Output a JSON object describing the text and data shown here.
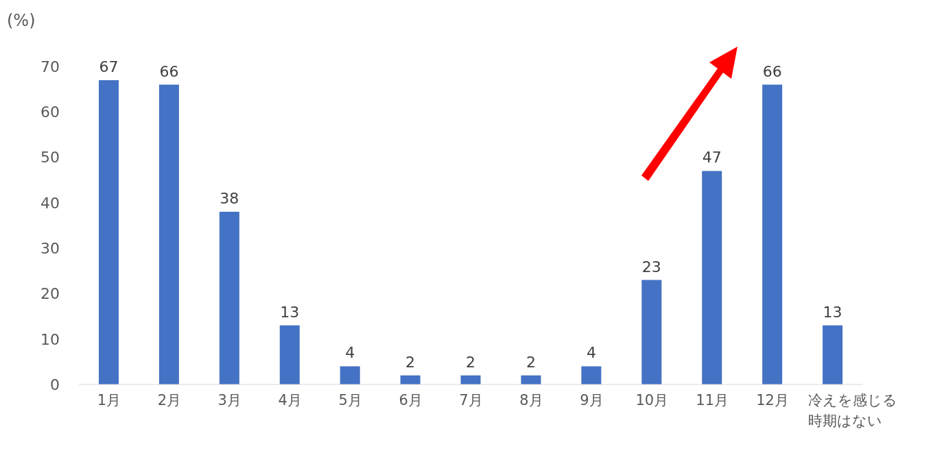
{
  "chart_data": {
    "type": "bar",
    "title": "(%)",
    "categories": [
      "1月",
      "2月",
      "3月",
      "4月",
      "5月",
      "6月",
      "7月",
      "8月",
      "9月",
      "10月",
      "11月",
      "12月",
      "冷えを感じる時期はない"
    ],
    "values": [
      67,
      66,
      38,
      13,
      4,
      2,
      2,
      2,
      4,
      23,
      47,
      66,
      13
    ],
    "color": "#4472c4",
    "ylim": [
      0,
      70
    ],
    "yticks": [
      0,
      10,
      20,
      30,
      40,
      50,
      60,
      70
    ],
    "data_labels": true
  }
}
